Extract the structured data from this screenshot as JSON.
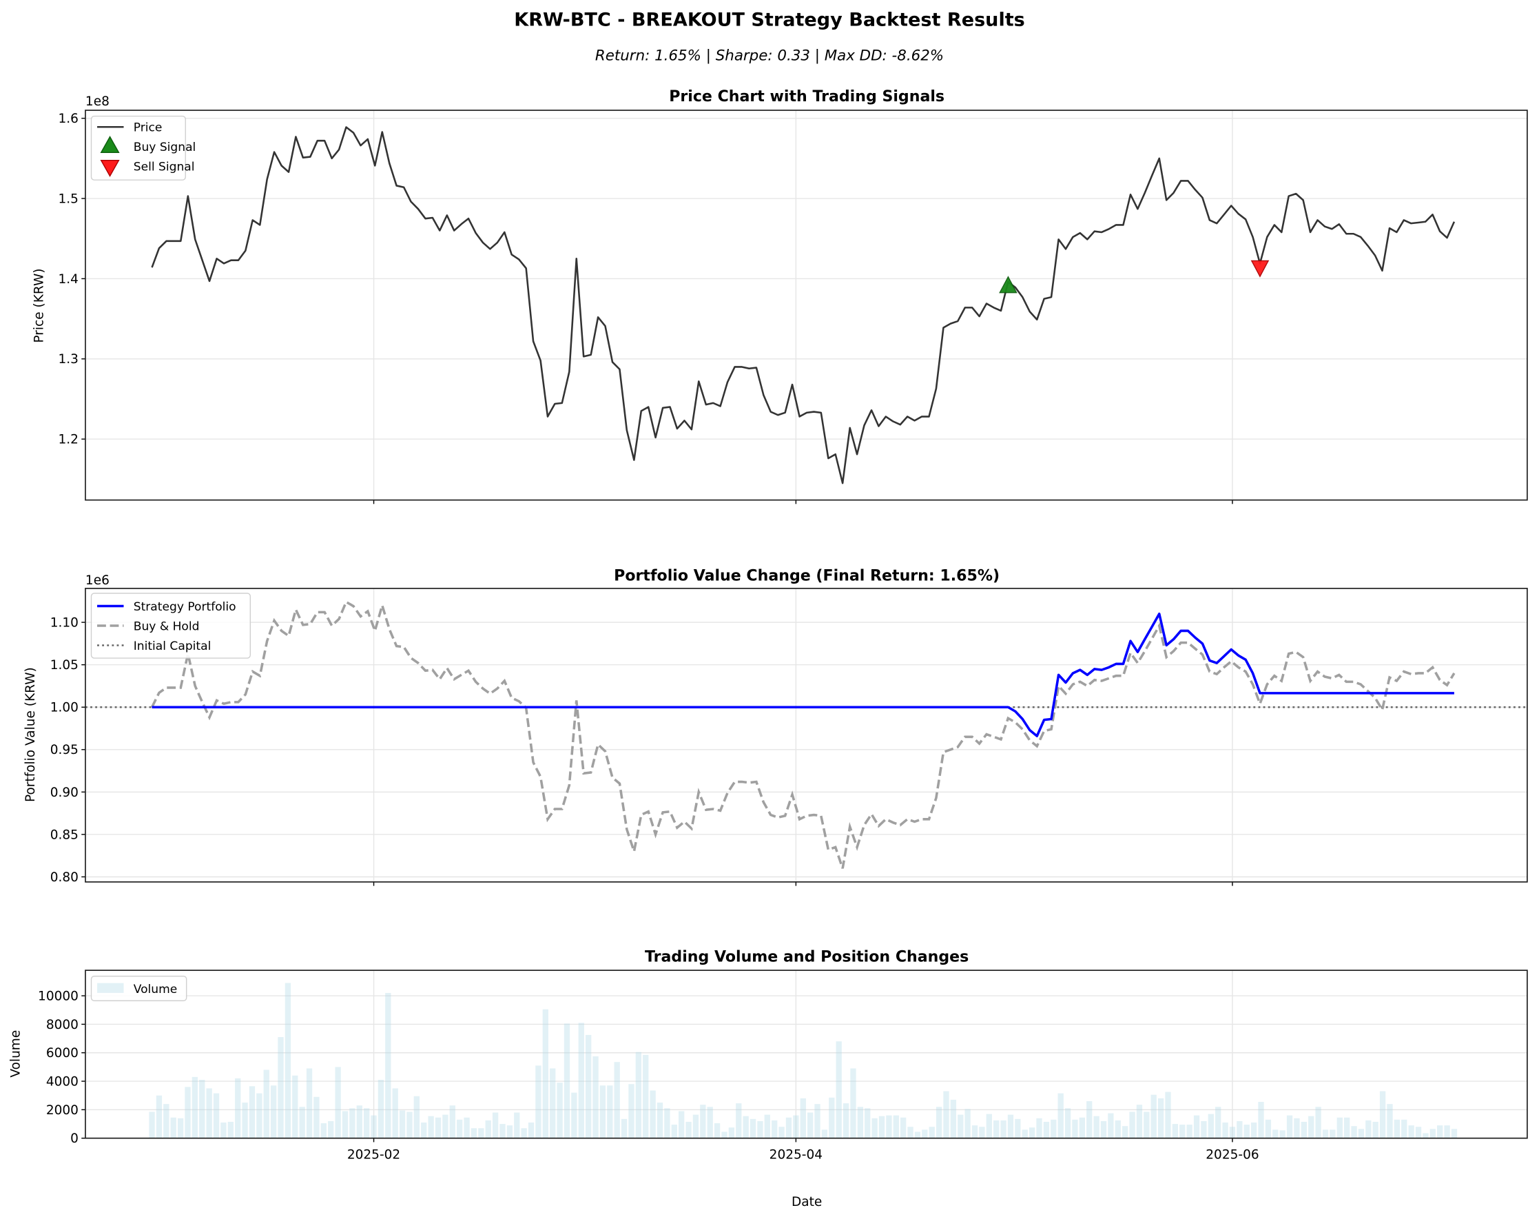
{
  "title": "KRW-BTC - BREAKOUT Strategy Backtest Results",
  "subtitle": "Return: 1.65% | Sharpe: 0.33 | Max DD: -8.62%",
  "colors": {
    "price": "#333333",
    "buy_signal": "#1a8a1a",
    "sell_signal": "#ff1a1a",
    "strategy": "#0000ff",
    "buy_hold": "#a0a0a0",
    "initial_capital": "#666666",
    "volume": "#add8e6",
    "grid": "#e6e6e6"
  },
  "chart_data": [
    {
      "type": "line",
      "title": "Price Chart with Trading Signals",
      "ylabel": "Price (KRW)",
      "y_offset_label": "1e8",
      "x": {
        "start": "2025-01-01",
        "end": "2025-07-02",
        "freq": "daily"
      },
      "xticks": [
        "2025-02",
        "2025-04",
        "2025-06"
      ],
      "ylim": [
        1.124,
        1.61
      ],
      "yticks": [
        1.2,
        1.3,
        1.4,
        1.5,
        1.6
      ],
      "ytick_labels": [
        "1.2",
        "1.3",
        "1.4",
        "1.5",
        "1.6"
      ],
      "grid": true,
      "legend": {
        "placement": "upper-left",
        "entries": [
          "Price",
          "Buy Signal",
          "Sell Signal"
        ]
      },
      "series": [
        {
          "name": "Price",
          "values": [
            1.414,
            1.438,
            1.447,
            1.447,
            1.447,
            1.503,
            1.449,
            1.423,
            1.397,
            1.425,
            1.419,
            1.423,
            1.423,
            1.435,
            1.473,
            1.467,
            1.524,
            1.558,
            1.541,
            1.533,
            1.577,
            1.551,
            1.552,
            1.572,
            1.572,
            1.55,
            1.561,
            1.589,
            1.582,
            1.566,
            1.574,
            1.541,
            1.583,
            1.544,
            1.516,
            1.514,
            1.496,
            1.487,
            1.475,
            1.476,
            1.46,
            1.479,
            1.46,
            1.468,
            1.475,
            1.457,
            1.445,
            1.437,
            1.445,
            1.458,
            1.43,
            1.424,
            1.413,
            1.322,
            1.298,
            1.228,
            1.244,
            1.245,
            1.284,
            1.425,
            1.303,
            1.305,
            1.352,
            1.341,
            1.296,
            1.287,
            1.211,
            1.174,
            1.235,
            1.24,
            1.202,
            1.239,
            1.24,
            1.213,
            1.223,
            1.212,
            1.272,
            1.243,
            1.245,
            1.241,
            1.271,
            1.29,
            1.29,
            1.288,
            1.289,
            1.255,
            1.234,
            1.23,
            1.233,
            1.268,
            1.228,
            1.233,
            1.234,
            1.233,
            1.176,
            1.181,
            1.145,
            1.214,
            1.181,
            1.217,
            1.236,
            1.216,
            1.228,
            1.222,
            1.218,
            1.228,
            1.223,
            1.228,
            1.228,
            1.263,
            1.339,
            1.344,
            1.347,
            1.364,
            1.364,
            1.353,
            1.369,
            1.364,
            1.36,
            1.396,
            1.389,
            1.377,
            1.359,
            1.349,
            1.375,
            1.377,
            1.449,
            1.437,
            1.452,
            1.457,
            1.449,
            1.459,
            1.458,
            1.462,
            1.467,
            1.467,
            1.505,
            1.487,
            1.507,
            1.529,
            1.55,
            1.498,
            1.507,
            1.522,
            1.522,
            1.511,
            1.501,
            1.473,
            1.469,
            1.48,
            1.491,
            1.481,
            1.474,
            1.452,
            1.419,
            1.452,
            1.467,
            1.458,
            1.503,
            1.506,
            1.498,
            1.458,
            1.473,
            1.465,
            1.462,
            1.468,
            1.456,
            1.456,
            1.452,
            1.441,
            1.429,
            1.41,
            1.463,
            1.458,
            1.473,
            1.469,
            1.47,
            1.471,
            1.48,
            1.459,
            1.451,
            1.471
          ]
        }
      ],
      "signals": [
        {
          "name": "Buy Signal",
          "index": 119,
          "value": 1.39,
          "marker": "triangle-up"
        },
        {
          "name": "Sell Signal",
          "index": 154,
          "value": 1.415,
          "marker": "triangle-down"
        }
      ]
    },
    {
      "type": "line",
      "title": "Portfolio Value Change (Final Return: 1.65%)",
      "ylabel": "Portfolio Value (KRW)",
      "y_offset_label": "1e6",
      "x": {
        "start": "2025-01-01",
        "end": "2025-07-02",
        "freq": "daily"
      },
      "xticks": [
        "2025-02",
        "2025-04",
        "2025-06"
      ],
      "ylim": [
        0.794,
        1.14
      ],
      "yticks": [
        0.8,
        0.85,
        0.9,
        0.95,
        1.0,
        1.05,
        1.1
      ],
      "ytick_labels": [
        "0.80",
        "0.85",
        "0.90",
        "0.95",
        "1.00",
        "1.05",
        "1.10"
      ],
      "grid": true,
      "legend": {
        "placement": "upper-left",
        "entries": [
          "Strategy Portfolio",
          "Buy & Hold",
          "Initial Capital"
        ]
      },
      "initial_capital": 1.0,
      "series": [
        {
          "name": "Strategy Portfolio",
          "values": [
            1,
            1,
            1,
            1,
            1,
            1,
            1,
            1,
            1,
            1,
            1,
            1,
            1,
            1,
            1,
            1,
            1,
            1,
            1,
            1,
            1,
            1,
            1,
            1,
            1,
            1,
            1,
            1,
            1,
            1,
            1,
            1,
            1,
            1,
            1,
            1,
            1,
            1,
            1,
            1,
            1,
            1,
            1,
            1,
            1,
            1,
            1,
            1,
            1,
            1,
            1,
            1,
            1,
            1,
            1,
            1,
            1,
            1,
            1,
            1,
            1,
            1,
            1,
            1,
            1,
            1,
            1,
            1,
            1,
            1,
            1,
            1,
            1,
            1,
            1,
            1,
            1,
            1,
            1,
            1,
            1,
            1,
            1,
            1,
            1,
            1,
            1,
            1,
            1,
            1,
            1,
            1,
            1,
            1,
            1,
            1,
            1,
            1,
            1,
            1,
            1,
            1,
            1,
            1,
            1,
            1,
            1,
            1,
            1,
            1,
            1,
            1,
            1,
            1,
            1,
            1,
            1,
            1,
            1,
            1.0,
            0.995,
            0.986,
            0.973,
            0.966,
            0.985,
            0.986,
            1.038,
            1.029,
            1.04,
            1.044,
            1.038,
            1.045,
            1.044,
            1.047,
            1.051,
            1.051,
            1.078,
            1.065,
            1.08,
            1.095,
            1.11,
            1.073,
            1.08,
            1.09,
            1.09,
            1.082,
            1.075,
            1.055,
            1.052,
            1.06,
            1.068,
            1.061,
            1.056,
            1.04,
            1.0165,
            1.0165,
            1.0165,
            1.0165,
            1.0165,
            1.0165,
            1.0165,
            1.0165,
            1.0165,
            1.0165,
            1.0165,
            1.0165,
            1.0165,
            1.0165,
            1.0165,
            1.0165,
            1.0165,
            1.0165,
            1.0165,
            1.0165,
            1.0165,
            1.0165,
            1.0165,
            1.0165,
            1.0165,
            1.0165,
            1.0165,
            1.0165
          ]
        },
        {
          "name": "Buy & Hold",
          "values": [
            1.0,
            1.017,
            1.023,
            1.023,
            1.023,
            1.063,
            1.025,
            1.006,
            0.988,
            1.008,
            1.004,
            1.006,
            1.006,
            1.015,
            1.042,
            1.037,
            1.078,
            1.102,
            1.09,
            1.084,
            1.115,
            1.097,
            1.098,
            1.112,
            1.112,
            1.096,
            1.104,
            1.124,
            1.119,
            1.107,
            1.113,
            1.09,
            1.12,
            1.092,
            1.072,
            1.071,
            1.058,
            1.052,
            1.043,
            1.044,
            1.033,
            1.046,
            1.033,
            1.038,
            1.043,
            1.03,
            1.022,
            1.016,
            1.022,
            1.031,
            1.011,
            1.007,
            0.999,
            0.935,
            0.918,
            0.868,
            0.88,
            0.88,
            0.908,
            1.008,
            0.922,
            0.923,
            0.956,
            0.948,
            0.917,
            0.91,
            0.856,
            0.83,
            0.873,
            0.877,
            0.85,
            0.876,
            0.877,
            0.858,
            0.865,
            0.857,
            0.9,
            0.879,
            0.88,
            0.878,
            0.899,
            0.912,
            0.912,
            0.911,
            0.912,
            0.888,
            0.873,
            0.87,
            0.872,
            0.897,
            0.868,
            0.872,
            0.873,
            0.872,
            0.832,
            0.835,
            0.81,
            0.859,
            0.835,
            0.861,
            0.874,
            0.86,
            0.868,
            0.864,
            0.861,
            0.868,
            0.865,
            0.868,
            0.868,
            0.893,
            0.947,
            0.95,
            0.953,
            0.965,
            0.965,
            0.957,
            0.968,
            0.965,
            0.962,
            0.987,
            0.982,
            0.974,
            0.961,
            0.954,
            0.972,
            0.974,
            1.025,
            1.016,
            1.027,
            1.03,
            1.025,
            1.032,
            1.031,
            1.034,
            1.037,
            1.037,
            1.064,
            1.052,
            1.066,
            1.081,
            1.096,
            1.059,
            1.066,
            1.076,
            1.076,
            1.069,
            1.062,
            1.042,
            1.039,
            1.047,
            1.054,
            1.047,
            1.042,
            1.027,
            1.004,
            1.027,
            1.037,
            1.031,
            1.063,
            1.065,
            1.059,
            1.031,
            1.042,
            1.036,
            1.034,
            1.038,
            1.03,
            1.03,
            1.027,
            1.019,
            1.011,
            0.997,
            1.035,
            1.031,
            1.042,
            1.039,
            1.04,
            1.04,
            1.047,
            1.032,
            1.026,
            1.04
          ]
        }
      ]
    },
    {
      "type": "bar",
      "title": "Trading Volume and Position Changes",
      "xlabel": "Date",
      "ylabel": "Volume",
      "x": {
        "start": "2025-01-01",
        "end": "2025-07-02",
        "freq": "daily"
      },
      "xticks": [
        "2025-02",
        "2025-04",
        "2025-06"
      ],
      "ylim": [
        0,
        11790
      ],
      "yticks": [
        0,
        2000,
        4000,
        6000,
        8000,
        10000
      ],
      "ytick_labels": [
        "0",
        "2000",
        "4000",
        "6000",
        "8000",
        "10000"
      ],
      "grid": true,
      "legend": {
        "placement": "upper-left",
        "entries": [
          "Volume"
        ]
      },
      "series": [
        {
          "name": "Volume",
          "values": [
            1850,
            3000,
            2400,
            1450,
            1400,
            3600,
            4300,
            4100,
            3500,
            3150,
            1100,
            1150,
            4200,
            2500,
            3650,
            3150,
            4800,
            3700,
            7100,
            10900,
            4400,
            2200,
            4900,
            2900,
            1050,
            1200,
            5000,
            1900,
            2100,
            2300,
            2100,
            1600,
            4100,
            10200,
            3500,
            1950,
            1850,
            2950,
            1100,
            1550,
            1450,
            1650,
            2300,
            1300,
            1450,
            700,
            700,
            1250,
            1800,
            1000,
            900,
            1800,
            700,
            1100,
            5100,
            9050,
            4900,
            3900,
            8050,
            3200,
            8100,
            7250,
            5750,
            3700,
            3700,
            5350,
            1350,
            3800,
            6050,
            5850,
            3350,
            2500,
            2100,
            950,
            1900,
            1150,
            1650,
            2350,
            2200,
            1050,
            450,
            750,
            2450,
            1550,
            1350,
            1200,
            1650,
            1250,
            800,
            1450,
            1600,
            2800,
            1800,
            2400,
            600,
            2850,
            6800,
            2450,
            4900,
            2200,
            2100,
            1400,
            1550,
            1600,
            1600,
            1450,
            800,
            450,
            600,
            800,
            2200,
            3300,
            2700,
            1650,
            2050,
            900,
            800,
            1700,
            1250,
            1250,
            1650,
            1350,
            600,
            750,
            1400,
            1150,
            1300,
            3150,
            2100,
            1300,
            1450,
            2600,
            1550,
            1200,
            1750,
            1250,
            850,
            1850,
            2350,
            1850,
            3050,
            2800,
            3250,
            1000,
            950,
            950,
            1600,
            1200,
            1700,
            2200,
            1100,
            800,
            1200,
            950,
            1100,
            2550,
            1300,
            600,
            550,
            1600,
            1400,
            1150,
            1550,
            2200,
            600,
            600,
            1450,
            1450,
            850,
            650,
            1250,
            1150,
            3300,
            2400,
            1300,
            1300,
            900,
            800,
            350,
            650,
            900,
            900,
            650
          ]
        }
      ]
    }
  ]
}
